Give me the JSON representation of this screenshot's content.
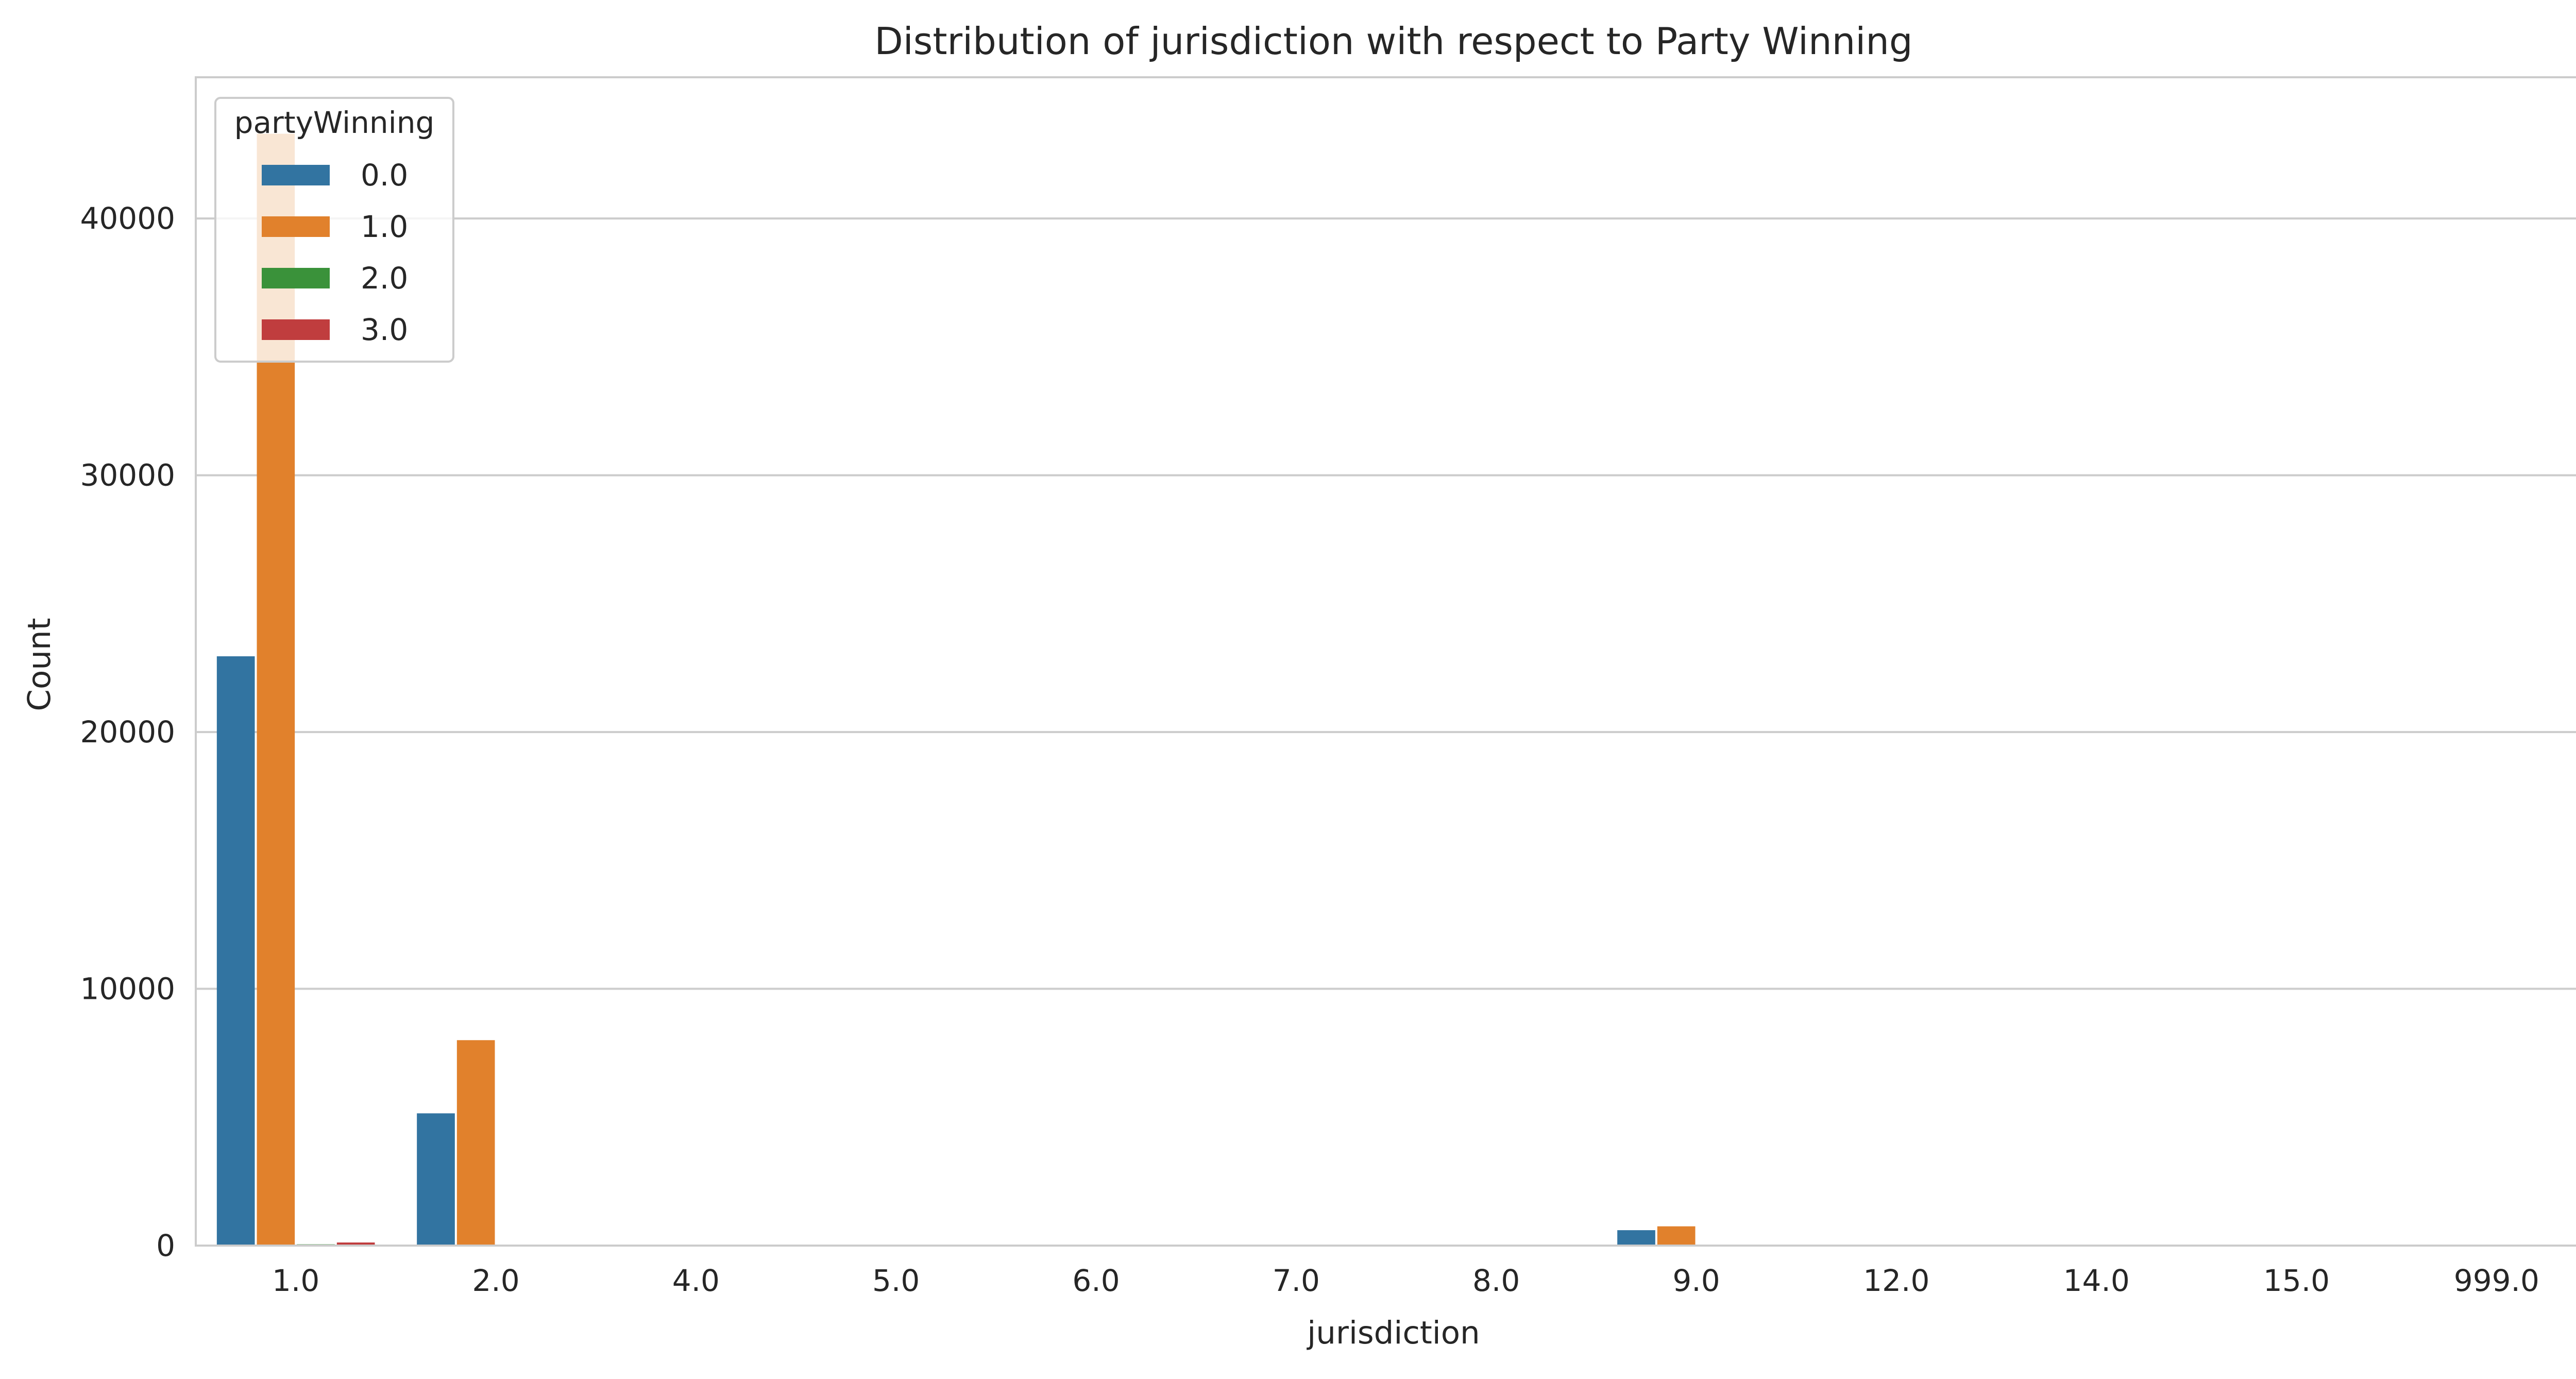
{
  "chart_data": {
    "type": "bar",
    "title": "Distribution of jurisdiction with respect to Party Winning",
    "xlabel": "jurisdiction",
    "ylabel": "Count",
    "ylim": [
      0,
      45500
    ],
    "yticks": [
      0,
      10000,
      20000,
      30000,
      40000
    ],
    "grid": true,
    "legend": {
      "title": "partyWinning",
      "placement": "top-left"
    },
    "categories": [
      "1.0",
      "2.0",
      "4.0",
      "5.0",
      "6.0",
      "7.0",
      "8.0",
      "9.0",
      "12.0",
      "14.0",
      "15.0",
      "999.0"
    ],
    "series": [
      {
        "name": "0.0",
        "color": "#3274a1",
        "values": [
          22950,
          5150,
          20,
          15,
          10,
          10,
          10,
          600,
          10,
          5,
          5,
          5
        ]
      },
      {
        "name": "1.0",
        "color": "#e1812c",
        "values": [
          43300,
          8000,
          20,
          15,
          10,
          10,
          10,
          750,
          10,
          5,
          5,
          5
        ]
      },
      {
        "name": "2.0",
        "color": "#3a923a",
        "values": [
          50,
          20,
          0,
          0,
          0,
          0,
          0,
          10,
          0,
          0,
          0,
          0
        ]
      },
      {
        "name": "3.0",
        "color": "#c03d3e",
        "values": [
          120,
          30,
          0,
          0,
          0,
          0,
          0,
          10,
          0,
          0,
          0,
          0
        ]
      }
    ]
  }
}
